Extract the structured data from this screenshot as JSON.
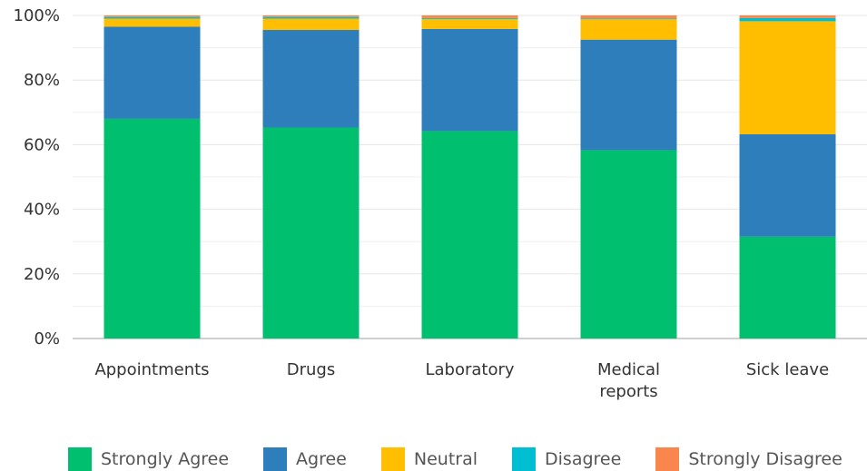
{
  "chart_data": {
    "type": "bar",
    "stacked": true,
    "categories": [
      "Appointments",
      "Drugs",
      "Laboratory",
      "Medical reports",
      "Sick leave"
    ],
    "category_lines": [
      [
        "Appointments"
      ],
      [
        "Drugs"
      ],
      [
        "Laboratory"
      ],
      [
        "Medical",
        "reports"
      ],
      [
        "Sick leave"
      ]
    ],
    "series": [
      {
        "name": "Strongly Agree",
        "color": "#00bf6f",
        "values": [
          68,
          65.3,
          64.2,
          58.3,
          31.5
        ]
      },
      {
        "name": "Agree",
        "color": "#2d7ebb",
        "values": [
          28.5,
          30.2,
          31.6,
          34.2,
          31.7
        ]
      },
      {
        "name": "Neutral",
        "color": "#ffbe00",
        "values": [
          2.5,
          3.5,
          3.1,
          6.3,
          35.0
        ]
      },
      {
        "name": "Disagree",
        "color": "#00bed1",
        "values": [
          0.5,
          0.5,
          0.3,
          0.2,
          1.0
        ]
      },
      {
        "name": "Strongly Disagree",
        "color": "#f9874d",
        "values": [
          0.5,
          0.5,
          0.8,
          1.0,
          0.8
        ]
      }
    ],
    "ylim": [
      0,
      100
    ],
    "yticks": [
      "0%",
      "20%",
      "40%",
      "60%",
      "80%",
      "100%"
    ],
    "grid": true,
    "legend_position": "bottom"
  }
}
